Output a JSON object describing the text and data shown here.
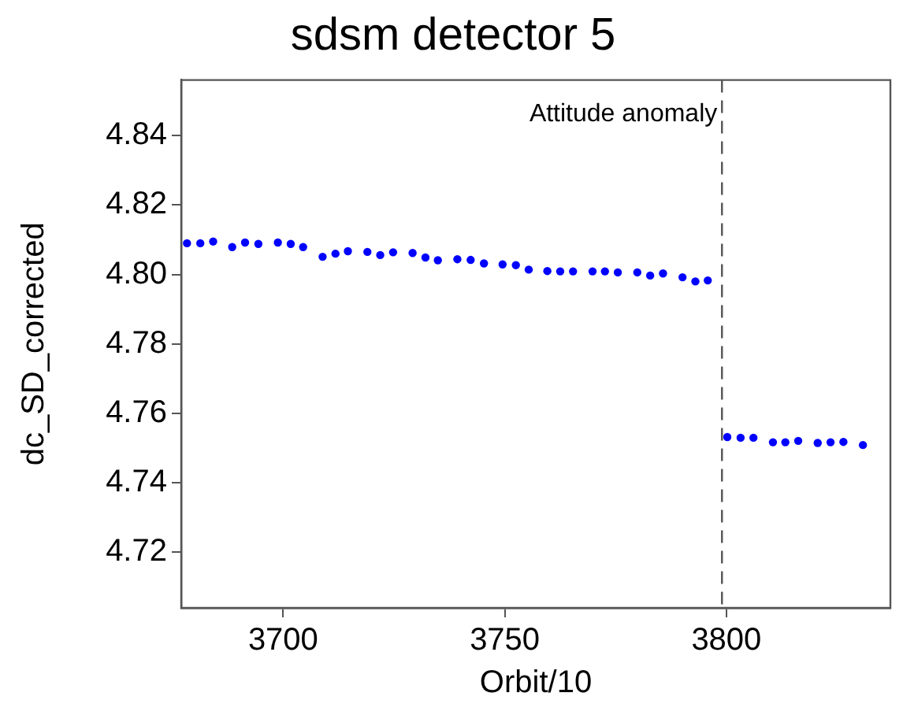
{
  "chart_data": {
    "type": "scatter",
    "title": "sdsm detector 5",
    "xlabel": "Orbit/10",
    "ylabel": "dc_SD_corrected",
    "x": [
      3678.3,
      3681.3,
      3684.2,
      3688.5,
      3691.4,
      3694.4,
      3698.8,
      3701.7,
      3704.5,
      3708.9,
      3711.8,
      3714.6,
      3719,
      3721.9,
      3724.8,
      3729.2,
      3732.1,
      3734.9,
      3739.3,
      3742.3,
      3745.3,
      3749.5,
      3752.5,
      3755.4,
      3759.6,
      3762.5,
      3765.4,
      3769.8,
      3772.6,
      3775.5,
      3779.9,
      3782.8,
      3785.7,
      3790.1,
      3793,
      3795.8,
      3800.2,
      3803.2,
      3806.1,
      3810.5,
      3813.3,
      3816.2,
      3820.6,
      3823.5,
      3826.4,
      3830.8
    ],
    "series": [
      {
        "color": "#0000ff",
        "values": [
          4.809,
          4.809,
          4.8095,
          4.8079,
          4.8092,
          4.8088,
          4.8092,
          4.8088,
          4.8079,
          4.8051,
          4.806,
          4.8067,
          4.8065,
          4.8056,
          4.8064,
          4.8062,
          4.8049,
          4.8041,
          4.8044,
          4.8042,
          4.8032,
          4.8029,
          4.8027,
          4.8014,
          4.801,
          4.8009,
          4.8009,
          4.8009,
          4.8009,
          4.8006,
          4.8006,
          4.7997,
          4.8003,
          4.7992,
          4.798,
          4.7983,
          4.7532,
          4.753,
          4.753,
          4.7517,
          4.7517,
          4.7521,
          4.7515,
          4.7517,
          4.7518,
          4.7509
        ]
      }
    ],
    "xlim": [
      3677,
      3837
    ],
    "xticks": [
      3700,
      3750,
      3800
    ],
    "ylim": [
      4.704,
      4.856
    ],
    "yticks": [
      4.72,
      4.74,
      4.76,
      4.78,
      {
        "value": 4.8,
        "label": "4.80"
      },
      4.82,
      4.84
    ],
    "ref_lines": [
      {
        "axis": "x",
        "value": 3799,
        "label": "Attitude anomaly",
        "color": "#555555",
        "line_style": "dashed"
      }
    ],
    "grid": false,
    "legend": false,
    "marker": "circle"
  }
}
